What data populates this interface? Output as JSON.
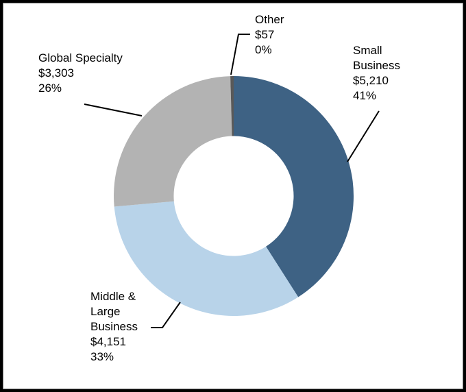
{
  "frame": {
    "background_color": "#ffffff",
    "border_color": "#000000"
  },
  "chart_data": {
    "type": "pie",
    "subtype": "donut",
    "title": "",
    "legend": "none",
    "hole_ratio": 0.5,
    "start_angle_deg": 0,
    "direction": "clockwise",
    "leader_line_color": "#000000",
    "segments": [
      {
        "label": "Small Business",
        "value": 5210,
        "value_label": "$5,210",
        "pct_label": "41%",
        "color": "#3E6284",
        "callout": "Small\nBusiness\n$5,210\n41%"
      },
      {
        "label": "Middle & Large Business",
        "value": 4151,
        "value_label": "$4,151",
        "pct_label": "33%",
        "color": "#B8D3E9",
        "callout": "Middle &\nLarge\nBusiness\n$4,151\n33%"
      },
      {
        "label": "Global Specialty",
        "value": 3303,
        "value_label": "$3,303",
        "pct_label": "26%",
        "color": "#B3B3B3",
        "callout": "Global Specialty\n$3,303\n26%"
      },
      {
        "label": "Other",
        "value": 57,
        "value_label": "$57",
        "pct_label": "0%",
        "color": "#595959",
        "callout": "Other\n$57\n0%"
      }
    ]
  }
}
